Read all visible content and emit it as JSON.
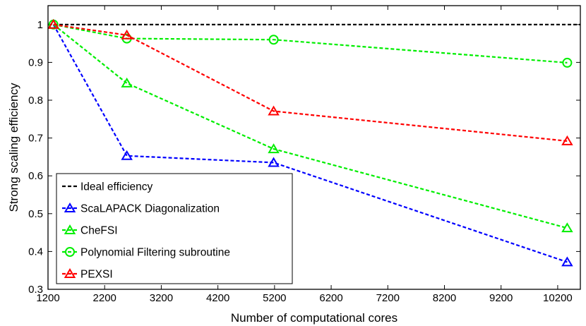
{
  "chart_data": {
    "type": "line",
    "title": "",
    "xlabel": "Number of computational cores",
    "ylabel": "Strong scaling efficiency",
    "xlim": [
      1200,
      10600
    ],
    "ylim": [
      0.3,
      1.05
    ],
    "x_ticks": [
      1200,
      2200,
      3200,
      4200,
      5200,
      6200,
      7200,
      8200,
      9200,
      10200
    ],
    "y_ticks": [
      0.3,
      0.4,
      0.5,
      0.6,
      0.7,
      0.8,
      0.9,
      1
    ],
    "grid": false,
    "legend_position": "bottom-left",
    "series": [
      {
        "name": "Ideal efficiency",
        "color": "#000000",
        "marker": "none",
        "x": [
          1200,
          10600
        ],
        "y": [
          1,
          1
        ]
      },
      {
        "name": "ScaLAPACK Diagonalization",
        "color": "#0000ff",
        "marker": "triangle",
        "x": [
          1296,
          2592,
          5184,
          10368
        ],
        "y": [
          1.0,
          0.653,
          0.635,
          0.372
        ]
      },
      {
        "name": "CheFSI",
        "color": "#00ee00",
        "marker": "triangle",
        "x": [
          1296,
          2592,
          5184,
          10368
        ],
        "y": [
          1.0,
          0.845,
          0.671,
          0.462
        ]
      },
      {
        "name": "Polynomial Filtering subroutine",
        "color": "#00ee00",
        "marker": "circle",
        "x": [
          1296,
          2592,
          5184,
          10368
        ],
        "y": [
          1.0,
          0.963,
          0.96,
          0.899
        ]
      },
      {
        "name": "PEXSI",
        "color": "#ff0000",
        "marker": "triangle",
        "x": [
          1296,
          2592,
          5184,
          10368
        ],
        "y": [
          1.0,
          0.972,
          0.771,
          0.692
        ]
      }
    ]
  }
}
